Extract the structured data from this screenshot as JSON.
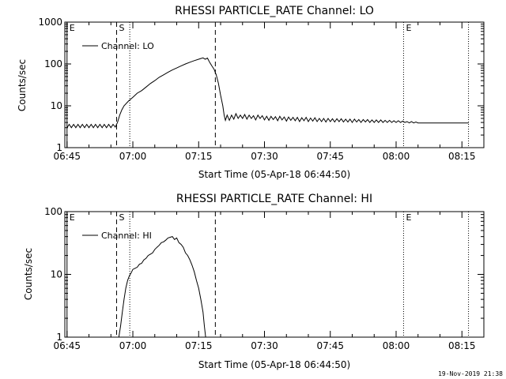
{
  "footer": {
    "timestamp": "19-Nov-2019 21:38"
  },
  "chart_data": [
    {
      "type": "line",
      "title": "RHESSI PARTICLE_RATE Channel: LO",
      "xlabel": "Start Time (05-Apr-18 06:44:50)",
      "ylabel": "Counts/sec",
      "yscale": "log",
      "xlim_minutes": [
        -0.5,
        95
      ],
      "ylim": [
        1,
        1000
      ],
      "x_ticks": [
        {
          "label": "06:45",
          "min": 0
        },
        {
          "label": "07:00",
          "min": 15
        },
        {
          "label": "07:15",
          "min": 30
        },
        {
          "label": "07:30",
          "min": 45
        },
        {
          "label": "07:45",
          "min": 60
        },
        {
          "label": "08:00",
          "min": 75
        },
        {
          "label": "08:15",
          "min": 90
        }
      ],
      "y_ticks": [
        {
          "label": "1",
          "value": 1
        },
        {
          "label": "10",
          "value": 10
        },
        {
          "label": "100",
          "value": 100
        },
        {
          "label": "1000",
          "value": 1000
        }
      ],
      "markers": [
        {
          "label": "E",
          "min": 0,
          "style": "solid"
        },
        {
          "label": "S",
          "min": 11.3,
          "style": "dashed"
        },
        {
          "label": "",
          "min": 14.3,
          "style": "dotted"
        },
        {
          "label": "",
          "min": 33.8,
          "style": "dashed"
        },
        {
          "label": "E",
          "min": 76.7,
          "style": "dotted"
        },
        {
          "label": "",
          "min": 91.5,
          "style": "dotted"
        }
      ],
      "legend": {
        "label": "Channel: LO",
        "position": "top-left"
      },
      "series": [
        {
          "name": "Channel: LO",
          "points": [
            [
              0,
              3
            ],
            [
              0.5,
              3.6
            ],
            [
              1,
              3
            ],
            [
              1.5,
              3.6
            ],
            [
              2,
              3
            ],
            [
              2.5,
              3.6
            ],
            [
              3,
              3
            ],
            [
              3.5,
              3.6
            ],
            [
              4,
              3
            ],
            [
              4.5,
              3.6
            ],
            [
              5,
              3
            ],
            [
              5.5,
              3.6
            ],
            [
              6,
              3
            ],
            [
              6.5,
              3.6
            ],
            [
              7,
              3
            ],
            [
              7.5,
              3.6
            ],
            [
              8,
              3
            ],
            [
              8.5,
              3.6
            ],
            [
              9,
              3
            ],
            [
              9.5,
              3.6
            ],
            [
              10,
              3
            ],
            [
              10.5,
              3.6
            ],
            [
              11,
              3.1
            ],
            [
              11.5,
              4
            ],
            [
              12,
              6
            ],
            [
              12.5,
              8
            ],
            [
              13,
              10
            ],
            [
              14,
              13
            ],
            [
              15,
              16
            ],
            [
              16,
              20
            ],
            [
              17,
              23
            ],
            [
              18,
              28
            ],
            [
              19,
              34
            ],
            [
              20,
              40
            ],
            [
              21,
              48
            ],
            [
              22,
              55
            ],
            [
              23,
              63
            ],
            [
              24,
              72
            ],
            [
              25,
              80
            ],
            [
              26,
              90
            ],
            [
              27,
              100
            ],
            [
              28,
              110
            ],
            [
              29,
              120
            ],
            [
              30,
              130
            ],
            [
              30.5,
              135
            ],
            [
              31,
              140
            ],
            [
              31.5,
              130
            ],
            [
              32,
              138
            ],
            [
              32.5,
              110
            ],
            [
              33,
              90
            ],
            [
              33.5,
              75
            ],
            [
              34,
              55
            ],
            [
              34.5,
              35
            ],
            [
              35,
              18
            ],
            [
              35.5,
              10
            ],
            [
              35.8,
              6
            ],
            [
              36.1,
              4.5
            ],
            [
              36.5,
              6
            ],
            [
              37,
              4.5
            ],
            [
              37.5,
              6
            ],
            [
              38,
              4.8
            ],
            [
              38.5,
              6.5
            ],
            [
              39,
              5
            ],
            [
              39.5,
              6
            ],
            [
              40,
              5
            ],
            [
              40.5,
              6.2
            ],
            [
              41,
              4.8
            ],
            [
              41.5,
              6
            ],
            [
              42,
              5
            ],
            [
              42.5,
              5.8
            ],
            [
              43,
              4.6
            ],
            [
              43.5,
              6
            ],
            [
              44,
              5
            ],
            [
              44.5,
              5.8
            ],
            [
              45,
              4.6
            ],
            [
              45.5,
              5.6
            ],
            [
              46,
              4.5
            ],
            [
              46.5,
              5.6
            ],
            [
              47,
              4.7
            ],
            [
              47.5,
              5.5
            ],
            [
              48,
              4.4
            ],
            [
              48.5,
              5.6
            ],
            [
              49,
              4.6
            ],
            [
              49.5,
              5.4
            ],
            [
              50,
              4.3
            ],
            [
              50.5,
              5.4
            ],
            [
              51,
              4.5
            ],
            [
              51.5,
              5.3
            ],
            [
              52,
              4.4
            ],
            [
              52.5,
              5.3
            ],
            [
              53,
              4.2
            ],
            [
              53.5,
              5.2
            ],
            [
              54,
              4.4
            ],
            [
              54.5,
              5.3
            ],
            [
              55,
              4.2
            ],
            [
              55.5,
              5.1
            ],
            [
              56,
              4.3
            ],
            [
              56.5,
              5.2
            ],
            [
              57,
              4.2
            ],
            [
              57.5,
              5
            ],
            [
              58,
              4.2
            ],
            [
              58.5,
              5
            ],
            [
              59,
              4.1
            ],
            [
              59.5,
              5
            ],
            [
              60,
              4.2
            ],
            [
              60.5,
              4.9
            ],
            [
              61,
              4.1
            ],
            [
              61.5,
              4.9
            ],
            [
              62,
              4.2
            ],
            [
              62.5,
              4.9
            ],
            [
              63,
              4.1
            ],
            [
              63.5,
              4.8
            ],
            [
              64,
              4.1
            ],
            [
              64.5,
              4.8
            ],
            [
              65,
              4
            ],
            [
              65.5,
              4.8
            ],
            [
              66,
              4.1
            ],
            [
              66.5,
              4.7
            ],
            [
              67,
              4
            ],
            [
              67.5,
              4.7
            ],
            [
              68,
              4.1
            ],
            [
              68.5,
              4.7
            ],
            [
              69,
              4
            ],
            [
              69.5,
              4.6
            ],
            [
              70,
              4
            ],
            [
              70.5,
              4.6
            ],
            [
              71,
              4
            ],
            [
              71.5,
              4.6
            ],
            [
              72,
              4
            ],
            [
              72.5,
              4.5
            ],
            [
              73,
              4
            ],
            [
              73.5,
              4.5
            ],
            [
              74,
              4
            ],
            [
              74.5,
              4.4
            ],
            [
              75,
              4
            ],
            [
              75.5,
              4.4
            ],
            [
              76,
              4
            ],
            [
              76.5,
              4.3
            ],
            [
              77,
              4
            ],
            [
              77.5,
              4.2
            ],
            [
              78,
              3.9
            ],
            [
              78.5,
              4.2
            ],
            [
              79,
              3.9
            ],
            [
              79.5,
              4.1
            ],
            [
              80,
              3.9
            ],
            [
              82,
              3.9
            ],
            [
              84,
              3.9
            ],
            [
              86,
              3.9
            ],
            [
              88,
              3.9
            ],
            [
              90,
              3.9
            ],
            [
              91.5,
              3.9
            ]
          ]
        }
      ]
    },
    {
      "type": "line",
      "title": "RHESSI PARTICLE_RATE Channel: HI",
      "xlabel": "Start Time (05-Apr-18 06:44:50)",
      "ylabel": "Counts/sec",
      "yscale": "log",
      "xlim_minutes": [
        -0.5,
        95
      ],
      "ylim": [
        1,
        100
      ],
      "x_ticks": [
        {
          "label": "06:45",
          "min": 0
        },
        {
          "label": "07:00",
          "min": 15
        },
        {
          "label": "07:15",
          "min": 30
        },
        {
          "label": "07:30",
          "min": 45
        },
        {
          "label": "07:45",
          "min": 60
        },
        {
          "label": "08:00",
          "min": 75
        },
        {
          "label": "08:15",
          "min": 90
        }
      ],
      "y_ticks": [
        {
          "label": "1",
          "value": 1
        },
        {
          "label": "10",
          "value": 10
        },
        {
          "label": "100",
          "value": 100
        }
      ],
      "markers": [
        {
          "label": "E",
          "min": 0,
          "style": "solid"
        },
        {
          "label": "S",
          "min": 11.3,
          "style": "dashed"
        },
        {
          "label": "",
          "min": 14.3,
          "style": "dotted"
        },
        {
          "label": "",
          "min": 33.8,
          "style": "dashed"
        },
        {
          "label": "E",
          "min": 76.7,
          "style": "dotted"
        },
        {
          "label": "",
          "min": 91.5,
          "style": "dotted"
        }
      ],
      "legend": {
        "label": "Channel: HI",
        "position": "top-left"
      },
      "series": [
        {
          "name": "Channel: HI",
          "points": [
            [
              11.8,
              1
            ],
            [
              12.2,
              1.5
            ],
            [
              12.6,
              2.5
            ],
            [
              13,
              4
            ],
            [
              13.4,
              6
            ],
            [
              13.8,
              8
            ],
            [
              14.2,
              9.5
            ],
            [
              14.6,
              10.5
            ],
            [
              15,
              12
            ],
            [
              15.5,
              12.5
            ],
            [
              16,
              13
            ],
            [
              16.5,
              14.5
            ],
            [
              17,
              15
            ],
            [
              17.5,
              17
            ],
            [
              18,
              18
            ],
            [
              18.5,
              20
            ],
            [
              19,
              21
            ],
            [
              19.5,
              22
            ],
            [
              20,
              25
            ],
            [
              20.5,
              27
            ],
            [
              21,
              29
            ],
            [
              21.5,
              32
            ],
            [
              22,
              33
            ],
            [
              22.5,
              35
            ],
            [
              23,
              38
            ],
            [
              23.5,
              39
            ],
            [
              24,
              40
            ],
            [
              24.5,
              36
            ],
            [
              25,
              38
            ],
            [
              25.5,
              32
            ],
            [
              26,
              30
            ],
            [
              26.5,
              27
            ],
            [
              27,
              22
            ],
            [
              27.5,
              20
            ],
            [
              28,
              17
            ],
            [
              28.5,
              14
            ],
            [
              29,
              11
            ],
            [
              29.5,
              8
            ],
            [
              30,
              6
            ],
            [
              30.5,
              4
            ],
            [
              31,
              2.5
            ],
            [
              31.3,
              1.5
            ],
            [
              31.6,
              1
            ]
          ]
        }
      ]
    }
  ]
}
